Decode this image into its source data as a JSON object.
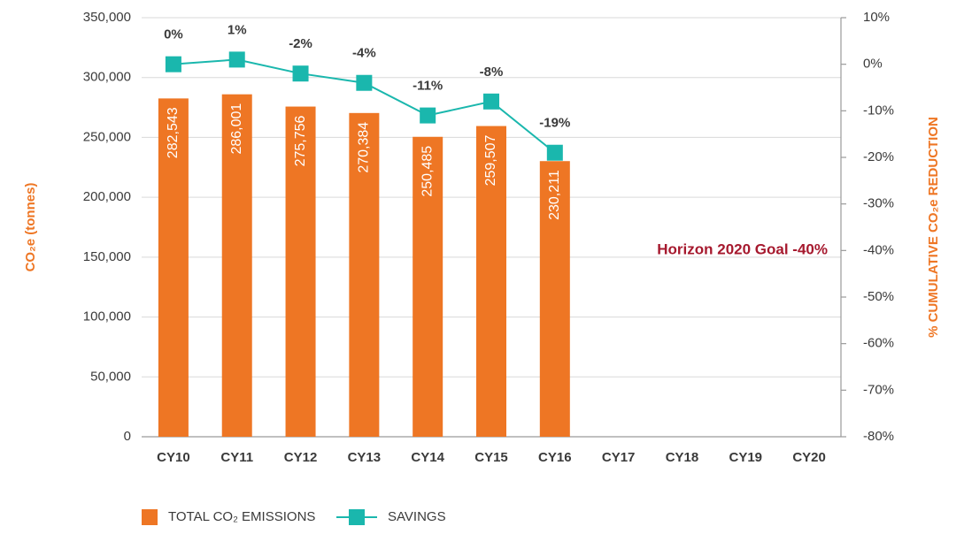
{
  "chart_data": {
    "type": "bar_line",
    "categories": [
      "CY10",
      "CY11",
      "CY12",
      "CY13",
      "CY14",
      "CY15",
      "CY16",
      "CY17",
      "CY18",
      "CY19",
      "CY20"
    ],
    "series": [
      {
        "name": "TOTAL CO₂ EMISSIONS",
        "color": "#ee7624",
        "type": "bar",
        "values": [
          282543,
          286001,
          275756,
          270384,
          250485,
          259507,
          230211,
          null,
          null,
          null,
          null
        ],
        "value_labels": [
          "282,543",
          "286,001",
          "275,756",
          "270,384",
          "250,485",
          "259,507",
          "230,211",
          null,
          null,
          null,
          null
        ]
      },
      {
        "name": "SAVINGS",
        "color": "#1ab7ad",
        "type": "line",
        "axis": "y2",
        "values": [
          0,
          1,
          -2,
          -4,
          -11,
          -8,
          -19,
          null,
          null,
          null,
          null
        ],
        "value_labels": [
          "0%",
          "1%",
          "-2%",
          "-4%",
          "-11%",
          "-8%",
          "-19%",
          null,
          null,
          null,
          null
        ]
      }
    ],
    "y_label": "CO₂e (tonnes)",
    "y2_label": "% CUMULATIVE CO₂e REDUCTION",
    "annotation": "Horizon 2020 Goal -40%",
    "ylim": [
      0,
      350000
    ],
    "yticks": [
      0,
      {
        "value": 50000,
        "label": "50,000"
      },
      {
        "value": 100000,
        "label": "100,000"
      },
      {
        "value": 150000,
        "label": "150,000"
      },
      {
        "value": 200000,
        "label": "200,000"
      },
      {
        "value": 250000,
        "label": "250,000"
      },
      {
        "value": 300000,
        "label": "300,000"
      },
      {
        "value": 350000,
        "label": "350,000"
      }
    ],
    "y2lim": [
      -80,
      10
    ],
    "y2ticks": [
      {
        "value": -80,
        "label": "-80%"
      },
      {
        "value": -70,
        "label": "-70%"
      },
      {
        "value": -60,
        "label": "-60%"
      },
      {
        "value": -50,
        "label": "-50%"
      },
      {
        "value": -40,
        "label": "-40%"
      },
      {
        "value": -30,
        "label": "-30%"
      },
      {
        "value": -20,
        "label": "-20%"
      },
      {
        "value": -10,
        "label": "-10%"
      },
      {
        "value": 0,
        "label": "0%"
      },
      {
        "value": 10,
        "label": "10%"
      }
    ],
    "grid": true,
    "legend": "bottom"
  }
}
